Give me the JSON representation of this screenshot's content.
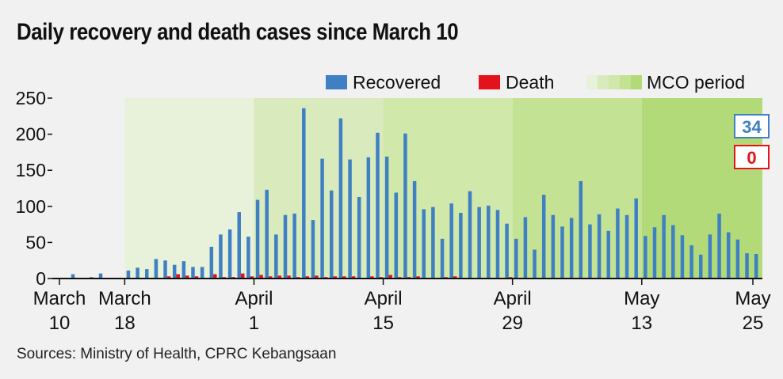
{
  "title": "Daily recovery and death cases since March 10",
  "source": "Sources: Ministry of Health, CPRC Kebangsaan",
  "colors": {
    "recovered": "#3f7fc4",
    "death": "#e3121b",
    "mco_shades": [
      "#e8f1d9",
      "#d9ebbd",
      "#d0e8a9",
      "#c4e293",
      "#b2da79"
    ],
    "axis": "#111111",
    "background": "#f1f1f1"
  },
  "latest": {
    "recovered": "34",
    "death": "0"
  },
  "chart_data": {
    "type": "bar",
    "title": "Daily recovery and death cases since March 10",
    "xlabel": "",
    "ylabel": "",
    "ylim": [
      0,
      250
    ],
    "yticks": [
      "0",
      "50",
      "100",
      "150",
      "200",
      "250"
    ],
    "legend": {
      "position": "top-right",
      "items": [
        "Recovered",
        "Death",
        "MCO period"
      ]
    },
    "x_ticks": [
      {
        "line1": "March",
        "line2": "10",
        "day_index": 0
      },
      {
        "line1": "March",
        "line2": "18",
        "day_index": 8
      },
      {
        "line1": "April",
        "line2": "1",
        "day_index": 22
      },
      {
        "line1": "April",
        "line2": "15",
        "day_index": 36
      },
      {
        "line1": "April",
        "line2": "29",
        "day_index": 50
      },
      {
        "line1": "May",
        "line2": "13",
        "day_index": 64
      },
      {
        "line1": "May",
        "line2": "25",
        "day_index": 76
      }
    ],
    "x_start": "March 10",
    "x_end": "May 25",
    "mco_period": {
      "start": "March 18",
      "end": "May 25",
      "phases": [
        "March 18",
        "April 1",
        "April 15",
        "April 29",
        "May 13"
      ]
    },
    "series": [
      {
        "name": "Recovered",
        "values": [
          1,
          0,
          6,
          0,
          2,
          7,
          1,
          0,
          11,
          15,
          13,
          27,
          25,
          19,
          24,
          16,
          16,
          44,
          61,
          68,
          92,
          58,
          109,
          123,
          61,
          88,
          90,
          236,
          81,
          166,
          122,
          222,
          165,
          113,
          168,
          202,
          169,
          119,
          201,
          135,
          96,
          99,
          55,
          104,
          91,
          121,
          99,
          101,
          95,
          76,
          55,
          85,
          40,
          116,
          88,
          72,
          84,
          135,
          75,
          89,
          66,
          97,
          88,
          111,
          59,
          71,
          88,
          74,
          60,
          46,
          33,
          61,
          90,
          64,
          54,
          35,
          34
        ]
      },
      {
        "name": "Death",
        "values": [
          0,
          0,
          0,
          0,
          0,
          0,
          0,
          0,
          1,
          0,
          0,
          1,
          3,
          6,
          4,
          3,
          1,
          6,
          2,
          2,
          7,
          3,
          5,
          3,
          4,
          4,
          2,
          3,
          4,
          2,
          3,
          3,
          3,
          1,
          3,
          2,
          5,
          2,
          2,
          3,
          1,
          1,
          2,
          3,
          1,
          1,
          1,
          0,
          1,
          2,
          1,
          1,
          0,
          1,
          0,
          0,
          0,
          0,
          0,
          0,
          0,
          0,
          0,
          1,
          1,
          0,
          0,
          0,
          0,
          0,
          0,
          0,
          1,
          1,
          0,
          0,
          0
        ]
      }
    ]
  }
}
